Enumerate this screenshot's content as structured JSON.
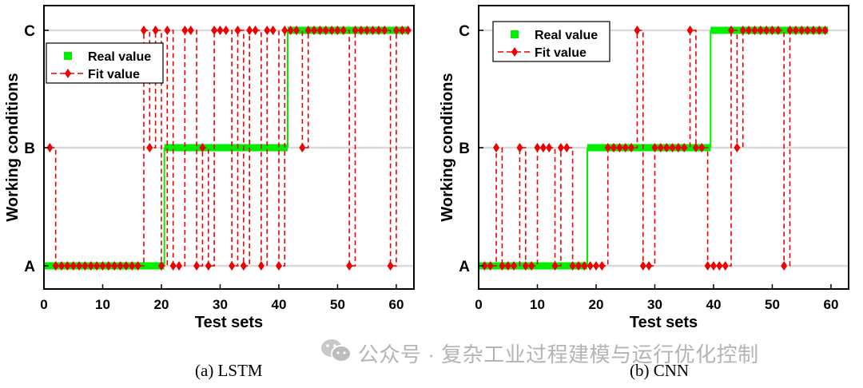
{
  "colors": {
    "real": "#00ee00",
    "fit": "#ee0000",
    "grid": "#d9d9d9",
    "axis": "#000000",
    "watermark": "#b4b4b4"
  },
  "chart_data": [
    {
      "type": "line",
      "panel": "(a) LSTM",
      "caption": "(a) LSTM",
      "xlabel": "Test sets",
      "ylabel": "Working conditions",
      "xlim": [
        0,
        63
      ],
      "xticks": [
        0,
        10,
        20,
        30,
        40,
        50,
        60
      ],
      "yticks": [
        "A",
        "B",
        "C"
      ],
      "grid": "horizontal",
      "legend": {
        "position": "top-left",
        "entries": [
          "Real value",
          "Fit value"
        ]
      },
      "series": [
        {
          "name": "Real value",
          "style": "thick green line",
          "segments": [
            {
              "x": [
                0,
                20.5
              ],
              "level": "A"
            },
            {
              "x": [
                20.5,
                41.5
              ],
              "level": "B"
            },
            {
              "x": [
                41.5,
                62
              ],
              "level": "C"
            }
          ]
        },
        {
          "name": "Fit value",
          "style": "red dashed line with diamond markers",
          "x": [
            1,
            2,
            3,
            4,
            5,
            6,
            7,
            8,
            9,
            10,
            11,
            12,
            13,
            14,
            15,
            16,
            17,
            18,
            19,
            20,
            21,
            22,
            23,
            24,
            25,
            26,
            27,
            28,
            29,
            30,
            31,
            32,
            33,
            34,
            35,
            36,
            37,
            38,
            39,
            40,
            41,
            42,
            43,
            44,
            45,
            46,
            47,
            48,
            49,
            50,
            51,
            52,
            53,
            54,
            55,
            56,
            57,
            58,
            59,
            60,
            61,
            62
          ],
          "y": [
            "B",
            "A",
            "A",
            "A",
            "A",
            "A",
            "A",
            "A",
            "A",
            "A",
            "A",
            "A",
            "A",
            "A",
            "A",
            "A",
            "C",
            "B",
            "C",
            "A",
            "C",
            "A",
            "A",
            "C",
            "C",
            "A",
            "B",
            "A",
            "C",
            "C",
            "C",
            "A",
            "C",
            "A",
            "C",
            "C",
            "A",
            "C",
            "C",
            "A",
            "C",
            "C",
            "C",
            "B",
            "C",
            "C",
            "C",
            "C",
            "C",
            "C",
            "C",
            "A",
            "C",
            "C",
            "C",
            "C",
            "C",
            "C",
            "A",
            "C",
            "C",
            "C"
          ]
        }
      ]
    },
    {
      "type": "line",
      "panel": "(b) CNN",
      "caption": "(b) CNN",
      "xlabel": "Test sets",
      "ylabel": "Working conditions",
      "xlim": [
        0,
        63
      ],
      "xticks": [
        0,
        10,
        20,
        30,
        40,
        50,
        60
      ],
      "yticks": [
        "A",
        "B",
        "C"
      ],
      "grid": "horizontal",
      "legend": {
        "position": "top-left",
        "entries": [
          "Real value",
          "Fit value"
        ]
      },
      "series": [
        {
          "name": "Real value",
          "style": "thick green line",
          "segments": [
            {
              "x": [
                0,
                18.5
              ],
              "level": "A"
            },
            {
              "x": [
                18.5,
                39.5
              ],
              "level": "B"
            },
            {
              "x": [
                39.5,
                59.5
              ],
              "level": "C"
            }
          ]
        },
        {
          "name": "Fit value",
          "style": "red dashed line with diamond markers",
          "x": [
            1,
            2,
            3,
            4,
            5,
            6,
            7,
            8,
            9,
            10,
            11,
            12,
            13,
            14,
            15,
            16,
            17,
            18,
            19,
            20,
            21,
            22,
            23,
            24,
            25,
            26,
            27,
            28,
            29,
            30,
            31,
            32,
            33,
            34,
            35,
            36,
            37,
            38,
            39,
            40,
            41,
            42,
            43,
            44,
            45,
            46,
            47,
            48,
            49,
            50,
            51,
            52,
            53,
            54,
            55,
            56,
            57,
            58,
            59
          ],
          "y": [
            "A",
            "A",
            "B",
            "A",
            "A",
            "A",
            "B",
            "A",
            "A",
            "B",
            "B",
            "B",
            "A",
            "B",
            "B",
            "A",
            "A",
            "A",
            "A",
            "A",
            "A",
            "B",
            "B",
            "B",
            "B",
            "B",
            "C",
            "A",
            "A",
            "B",
            "B",
            "B",
            "B",
            "B",
            "B",
            "C",
            "B",
            "B",
            "A",
            "A",
            "A",
            "A",
            "C",
            "B",
            "C",
            "C",
            "C",
            "C",
            "C",
            "C",
            "C",
            "A",
            "C",
            "C",
            "C",
            "C",
            "C",
            "C",
            "C"
          ]
        }
      ]
    }
  ],
  "watermark": {
    "text": "公众号 · 复杂工业过程建模与运行优化控制",
    "icon": "wechat-icon"
  }
}
